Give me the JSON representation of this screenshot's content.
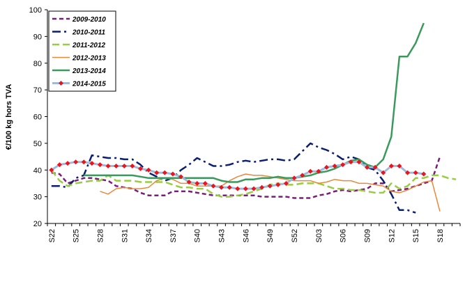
{
  "chart_data": {
    "type": "line",
    "y_label": "€/100 kg hors TVA",
    "ylim": [
      20,
      100
    ],
    "yticks": [
      20,
      30,
      40,
      50,
      60,
      70,
      80,
      90,
      100
    ],
    "grid": false,
    "legend": "top-left",
    "categories": [
      "S22",
      null,
      null,
      "S25",
      null,
      null,
      "S28",
      null,
      null,
      "S31",
      null,
      null,
      "S34",
      null,
      null,
      "S37",
      null,
      null,
      "S40",
      null,
      null,
      "S43",
      null,
      null,
      "S46",
      null,
      null,
      "S49",
      null,
      null,
      "S52",
      null,
      null,
      "S03",
      null,
      null,
      "S06",
      null,
      null,
      "S09",
      null,
      null,
      "S12",
      null,
      null,
      "S15",
      null,
      null,
      "S18",
      null,
      null
    ],
    "series": [
      {
        "name": "2009-2010",
        "color": "#7b1c7b",
        "values": [
          39,
          38.5,
          35,
          36,
          37,
          37,
          36.5,
          36,
          34,
          33.5,
          33,
          31.5,
          30.5,
          30.5,
          30.5,
          32,
          32,
          32,
          31.5,
          31,
          30.5,
          30.5,
          30.5,
          30.5,
          30.5,
          30.5,
          30,
          30,
          30,
          30,
          29.5,
          29.5,
          29.5,
          30.5,
          31,
          32,
          32.5,
          32,
          32.5,
          33,
          35,
          35,
          32,
          32.5,
          33,
          34,
          35,
          36,
          45,
          null,
          null
        ]
      },
      {
        "name": "2010-2011",
        "color": "#0a1f6e",
        "values": [
          34,
          34,
          33.5,
          37,
          38,
          45.5,
          45,
          44.5,
          44.5,
          44,
          44,
          42,
          39,
          37.5,
          36,
          37,
          40,
          42,
          44.5,
          43,
          41.5,
          41.5,
          42,
          43,
          43.5,
          43,
          43.5,
          44,
          44,
          43.5,
          44,
          47,
          50,
          48.5,
          47.5,
          46,
          44,
          45,
          44,
          41,
          40,
          36,
          31,
          25,
          25,
          24,
          null,
          null,
          null,
          null,
          null
        ]
      },
      {
        "name": "2011-2012",
        "color": "#99cc44",
        "values": [
          40,
          36,
          34,
          35,
          35.5,
          36,
          36,
          38,
          36,
          36,
          36,
          35.5,
          35.5,
          35.5,
          35.5,
          34.5,
          33.5,
          33.5,
          33,
          33,
          31,
          30,
          30,
          30.5,
          31,
          32,
          33,
          34.5,
          35,
          34.5,
          34.5,
          35,
          35,
          35,
          34,
          33,
          33,
          32.5,
          32.5,
          32,
          31.5,
          31.5,
          35,
          33,
          34,
          37,
          37,
          38,
          38,
          37,
          36.5
        ]
      },
      {
        "name": "2012-2013",
        "color": "#e8893a",
        "values": [
          null,
          null,
          null,
          null,
          null,
          null,
          32,
          31,
          33,
          33.5,
          33,
          33,
          33.5,
          36,
          37,
          36.5,
          35,
          35,
          34,
          34,
          34,
          34,
          36,
          37.5,
          38.5,
          38,
          38,
          37.5,
          37,
          36.5,
          36,
          36,
          36,
          35,
          35.5,
          36.5,
          36,
          36,
          35,
          35,
          34.5,
          34,
          32,
          31.5,
          32.5,
          34,
          35.5,
          36,
          24.5,
          null,
          null
        ]
      },
      {
        "name": "2013-2014",
        "color": "#3a9a5c",
        "values": [
          null,
          null,
          null,
          null,
          38,
          38,
          38,
          38,
          38,
          38,
          38,
          37.5,
          37,
          37,
          37,
          37,
          37,
          37,
          37,
          37,
          37,
          36,
          35.5,
          35.5,
          36.5,
          36.5,
          37,
          37,
          37.5,
          37,
          37,
          37.5,
          38,
          39,
          39.5,
          40.5,
          42,
          43.5,
          44,
          42,
          41,
          44,
          52.5,
          82.5,
          82.5,
          87.5,
          95,
          null,
          null,
          null,
          null
        ]
      },
      {
        "name": "2014-2015",
        "color": "#9fb8dc",
        "marker": "diamond",
        "marker_color": "#e8141e",
        "values": [
          40,
          42,
          42.5,
          43,
          43,
          42.5,
          42,
          41.5,
          41.5,
          41.5,
          41.5,
          40.5,
          40,
          39,
          39,
          38.5,
          37.5,
          35.5,
          35,
          35,
          34,
          33.5,
          33.5,
          33,
          33,
          33,
          33.5,
          34,
          34.5,
          35,
          37,
          38,
          39.5,
          39.5,
          41,
          41.5,
          42,
          43,
          43,
          41,
          41,
          39,
          41.5,
          41.5,
          39,
          39,
          38.5,
          null,
          null,
          null,
          null
        ]
      }
    ]
  }
}
